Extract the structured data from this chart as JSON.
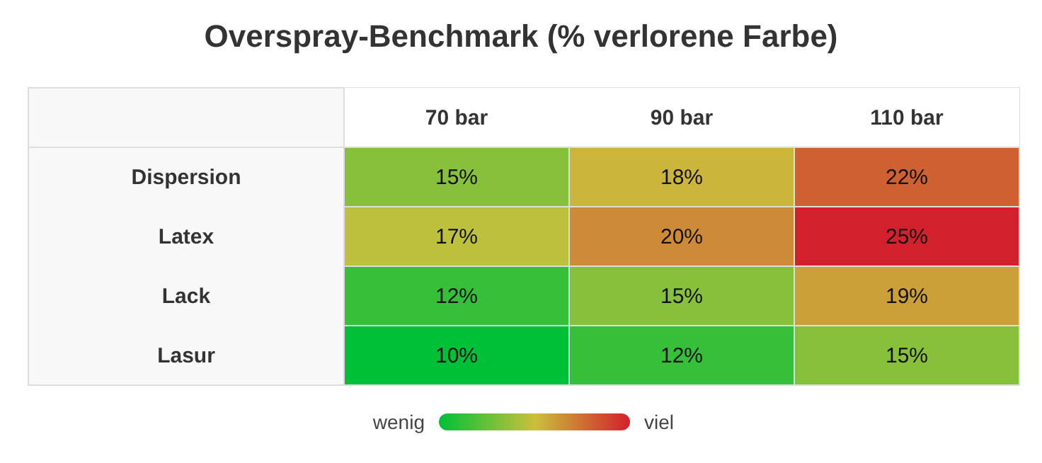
{
  "chart_data": {
    "type": "heatmap",
    "title": "Overspray-Benchmark (% verlorene Farbe)",
    "categories": [
      "70 bar",
      "90 bar",
      "110 bar"
    ],
    "y_categories": [
      "Dispersion",
      "Latex",
      "Lack",
      "Lasur"
    ],
    "cells": [
      [
        15,
        18,
        22
      ],
      [
        17,
        20,
        25
      ],
      [
        12,
        15,
        19
      ],
      [
        10,
        12,
        15
      ]
    ],
    "cell_labels": [
      [
        "15%",
        "18%",
        "22%"
      ],
      [
        "17%",
        "20%",
        "25%"
      ],
      [
        "12%",
        "15%",
        "19%"
      ],
      [
        "10%",
        "12%",
        "15%"
      ]
    ],
    "annotations": [
      "wenig",
      "viel"
    ],
    "colors": [
      "#00c038",
      "#cac03c",
      "#d2202c"
    ]
  }
}
